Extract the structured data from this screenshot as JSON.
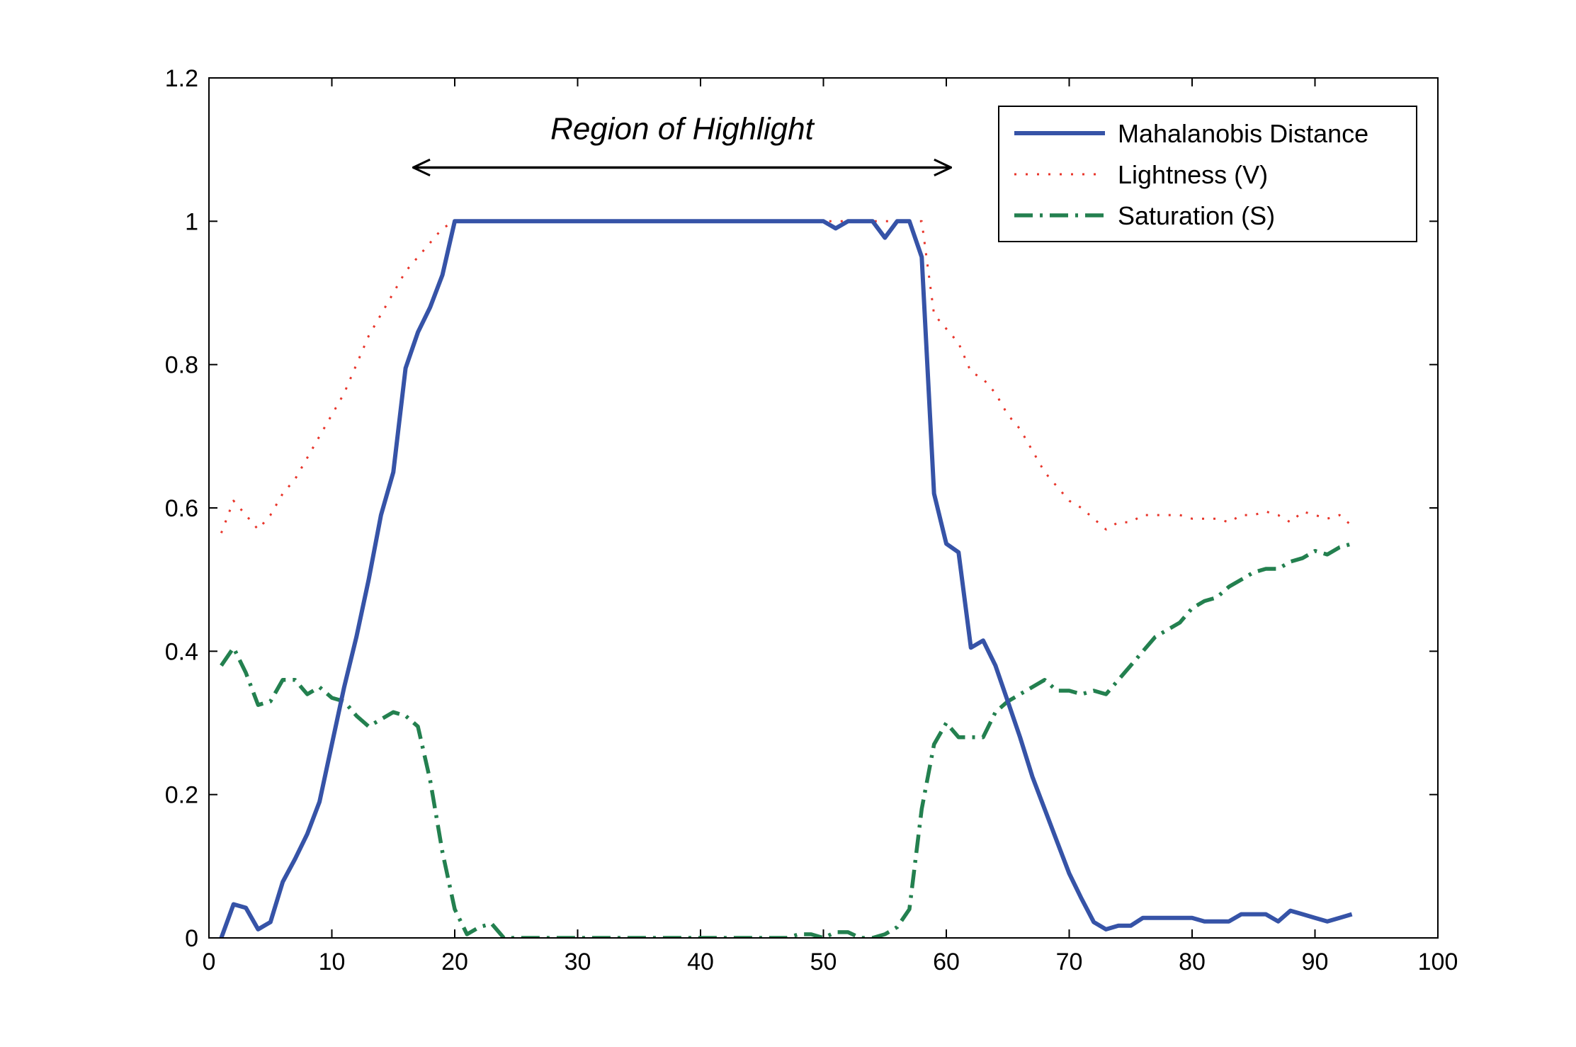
{
  "chart_data": {
    "type": "line",
    "title": "",
    "xlabel": "",
    "ylabel": "",
    "xlim": [
      0,
      100
    ],
    "ylim": [
      0,
      1.2
    ],
    "x_ticks": [
      0,
      10,
      20,
      30,
      40,
      50,
      60,
      70,
      80,
      90,
      100
    ],
    "y_ticks": [
      0,
      0.2,
      0.4,
      0.6,
      0.8,
      1,
      1.2
    ],
    "x_tick_labels": [
      "0",
      "10",
      "20",
      "30",
      "40",
      "50",
      "60",
      "70",
      "80",
      "90",
      "100"
    ],
    "y_tick_labels": [
      "0",
      "0.2",
      "0.4",
      "0.6",
      "0.8",
      "1",
      "1.2"
    ],
    "grid": false,
    "legend_position": "top-right",
    "annotation": {
      "text": "Region of Highlight",
      "arrow_from_x": 16.5,
      "arrow_to_x": 60.5,
      "y": 1.075
    },
    "series": [
      {
        "name": "Mahalanobis Distance",
        "color": "#3653a7",
        "style": "solid",
        "x": [
          1,
          2,
          3,
          4,
          5,
          6,
          7,
          8,
          9,
          10,
          11,
          12,
          13,
          14,
          15,
          16,
          17,
          18,
          19,
          20,
          21,
          22,
          23,
          24,
          25,
          26,
          27,
          28,
          29,
          30,
          31,
          32,
          33,
          34,
          35,
          36,
          37,
          38,
          39,
          40,
          41,
          42,
          43,
          44,
          45,
          46,
          47,
          48,
          49,
          50,
          51,
          52,
          53,
          54,
          55,
          56,
          57,
          58,
          59,
          60,
          61,
          62,
          63,
          64,
          65,
          66,
          67,
          68,
          69,
          70,
          71,
          72,
          73,
          74,
          75,
          76,
          77,
          78,
          79,
          80,
          81,
          82,
          83,
          84,
          85,
          86,
          87,
          88,
          89,
          90,
          91,
          92,
          93
        ],
        "y": [
          0,
          0.047,
          0.042,
          0.012,
          0.022,
          0.078,
          0.11,
          0.145,
          0.19,
          0.27,
          0.35,
          0.42,
          0.5,
          0.59,
          0.65,
          0.795,
          0.845,
          0.88,
          0.925,
          1,
          1,
          1,
          1,
          1,
          1,
          1,
          1,
          1,
          1,
          1,
          1,
          1,
          1,
          1,
          1,
          1,
          1,
          1,
          1,
          1,
          1,
          1,
          1,
          1,
          1,
          1,
          1,
          1,
          1,
          1,
          0.99,
          1,
          1,
          1,
          0.977,
          1,
          1,
          0.95,
          0.62,
          0.55,
          0.538,
          0.405,
          0.415,
          0.38,
          0.33,
          0.28,
          0.225,
          0.18,
          0.135,
          0.09,
          0.055,
          0.022,
          0.012,
          0.017,
          0.017,
          0.028,
          0.028,
          0.028,
          0.028,
          0.028,
          0.023,
          0.023,
          0.023,
          0.033,
          0.033,
          0.033,
          0.023,
          0.038,
          0.033,
          0.028,
          0.023,
          0.028,
          0.033
        ]
      },
      {
        "name": "Lightness (V)",
        "color": "#e8352a",
        "style": "dotted",
        "x": [
          1,
          2,
          3,
          4,
          5,
          6,
          7,
          8,
          9,
          10,
          11,
          12,
          13,
          14,
          15,
          16,
          17,
          18,
          19,
          20,
          21,
          22,
          23,
          24,
          25,
          26,
          27,
          28,
          29,
          30,
          31,
          32,
          33,
          34,
          35,
          36,
          37,
          38,
          39,
          40,
          41,
          42,
          43,
          44,
          45,
          46,
          47,
          48,
          49,
          50,
          51,
          52,
          53,
          54,
          55,
          56,
          57,
          58,
          59,
          60,
          61,
          62,
          63,
          64,
          65,
          66,
          67,
          68,
          69,
          70,
          71,
          72,
          73,
          74,
          75,
          76,
          77,
          78,
          79,
          80,
          81,
          82,
          83,
          84,
          85,
          86,
          87,
          88,
          89,
          90,
          91,
          92,
          93
        ],
        "y": [
          0.565,
          0.61,
          0.59,
          0.57,
          0.59,
          0.62,
          0.64,
          0.67,
          0.7,
          0.73,
          0.76,
          0.8,
          0.84,
          0.87,
          0.9,
          0.93,
          0.95,
          0.97,
          0.99,
          1,
          1,
          1,
          1,
          1,
          1,
          1,
          1,
          1,
          1,
          1,
          1,
          1,
          1,
          1,
          1,
          1,
          1,
          1,
          1,
          1,
          1,
          1,
          1,
          1,
          1,
          1,
          1,
          1,
          1,
          1,
          1,
          1,
          1,
          1,
          1,
          1,
          1,
          1,
          0.87,
          0.85,
          0.83,
          0.79,
          0.78,
          0.76,
          0.73,
          0.71,
          0.68,
          0.65,
          0.63,
          0.61,
          0.6,
          0.585,
          0.57,
          0.58,
          0.58,
          0.59,
          0.59,
          0.59,
          0.59,
          0.585,
          0.585,
          0.585,
          0.58,
          0.59,
          0.59,
          0.595,
          0.59,
          0.58,
          0.595,
          0.59,
          0.585,
          0.59,
          0.575
        ]
      },
      {
        "name": "Saturation (S)",
        "color": "#23804f",
        "style": "dashdot",
        "x": [
          1,
          2,
          3,
          4,
          5,
          6,
          7,
          8,
          9,
          10,
          11,
          12,
          13,
          14,
          15,
          16,
          17,
          18,
          19,
          20,
          21,
          22,
          23,
          24,
          25,
          26,
          27,
          28,
          29,
          30,
          31,
          32,
          33,
          34,
          35,
          36,
          37,
          38,
          39,
          40,
          41,
          42,
          43,
          44,
          45,
          46,
          47,
          48,
          49,
          50,
          51,
          52,
          53,
          54,
          55,
          56,
          57,
          58,
          59,
          60,
          61,
          62,
          63,
          64,
          65,
          66,
          67,
          68,
          69,
          70,
          71,
          72,
          73,
          74,
          75,
          76,
          77,
          78,
          79,
          80,
          81,
          82,
          83,
          84,
          85,
          86,
          87,
          88,
          89,
          90,
          91,
          92,
          93
        ],
        "y": [
          0.38,
          0.405,
          0.37,
          0.325,
          0.33,
          0.36,
          0.36,
          0.34,
          0.35,
          0.335,
          0.33,
          0.31,
          0.295,
          0.305,
          0.315,
          0.31,
          0.295,
          0.22,
          0.12,
          0.04,
          0.005,
          0.015,
          0.02,
          0,
          0,
          0,
          0,
          0,
          0,
          0,
          0,
          0,
          0,
          0,
          0,
          0,
          0,
          0,
          0,
          0,
          0,
          0,
          0,
          0,
          0,
          0,
          0,
          0.005,
          0.005,
          0,
          0.008,
          0.008,
          0,
          0,
          0.005,
          0.015,
          0.04,
          0.18,
          0.27,
          0.3,
          0.28,
          0.28,
          0.28,
          0.315,
          0.33,
          0.34,
          0.35,
          0.36,
          0.345,
          0.345,
          0.34,
          0.345,
          0.34,
          0.36,
          0.38,
          0.4,
          0.42,
          0.43,
          0.44,
          0.46,
          0.47,
          0.475,
          0.49,
          0.5,
          0.51,
          0.515,
          0.515,
          0.525,
          0.53,
          0.54,
          0.535,
          0.545,
          0.55
        ]
      }
    ]
  }
}
